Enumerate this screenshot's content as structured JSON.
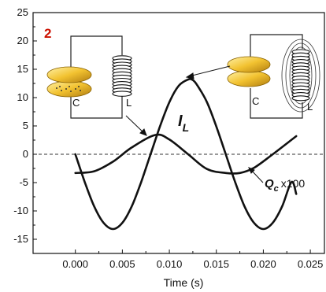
{
  "chart_data": {
    "type": "line",
    "panel_label": "2",
    "xlabel": "Time (s)",
    "ylabel": "",
    "xlim": [
      -0.0045,
      0.0265
    ],
    "ylim": [
      -17.5,
      25
    ],
    "x_ticks": [
      0.0,
      0.005,
      0.01,
      0.015,
      0.02,
      0.025
    ],
    "x_tick_labels": [
      "0.000",
      "0.005",
      "0.010",
      "0.015",
      "0.020",
      "0.025"
    ],
    "y_ticks": [
      -15,
      -10,
      -5,
      0,
      5,
      10,
      15,
      20,
      25
    ],
    "y_tick_labels": [
      "-15",
      "-10",
      "-5",
      "0",
      "5",
      "10",
      "15",
      "20",
      "25"
    ],
    "zero_line": "dashed",
    "series": [
      {
        "label_main": "I",
        "label_sub": "L",
        "x": [
          0.0,
          0.001,
          0.002,
          0.003,
          0.004,
          0.005,
          0.006,
          0.007,
          0.008,
          0.009,
          0.01,
          0.011,
          0.012,
          0.0125,
          0.013,
          0.014,
          0.015,
          0.016,
          0.017,
          0.018,
          0.019,
          0.02,
          0.021,
          0.022,
          0.023,
          0.0235
        ],
        "values": [
          0.0,
          -4.9,
          -9.2,
          -12.1,
          -13.2,
          -12.1,
          -9.2,
          -4.9,
          0.0,
          4.9,
          9.2,
          12.1,
          13.2,
          13.1,
          12.1,
          9.2,
          4.9,
          0.0,
          -4.9,
          -9.2,
          -12.1,
          -13.2,
          -12.1,
          -9.2,
          -4.9,
          -7.0
        ]
      },
      {
        "label_main": "Q",
        "label_sub": "c",
        "label_suffix": "x100",
        "x": [
          0.0,
          0.002,
          0.004,
          0.006,
          0.0085,
          0.01,
          0.012,
          0.014,
          0.016,
          0.0175,
          0.019,
          0.021,
          0.0235
        ],
        "values": [
          -3.3,
          -3.0,
          -1.3,
          1.2,
          3.4,
          2.6,
          0.0,
          -2.6,
          -3.3,
          -3.3,
          -2.4,
          0.0,
          3.2
        ]
      }
    ],
    "insets": [
      {
        "capacitor_label": "C",
        "inductor_label": "L"
      },
      {
        "capacitor_label": "C",
        "inductor_label": "L"
      }
    ]
  }
}
